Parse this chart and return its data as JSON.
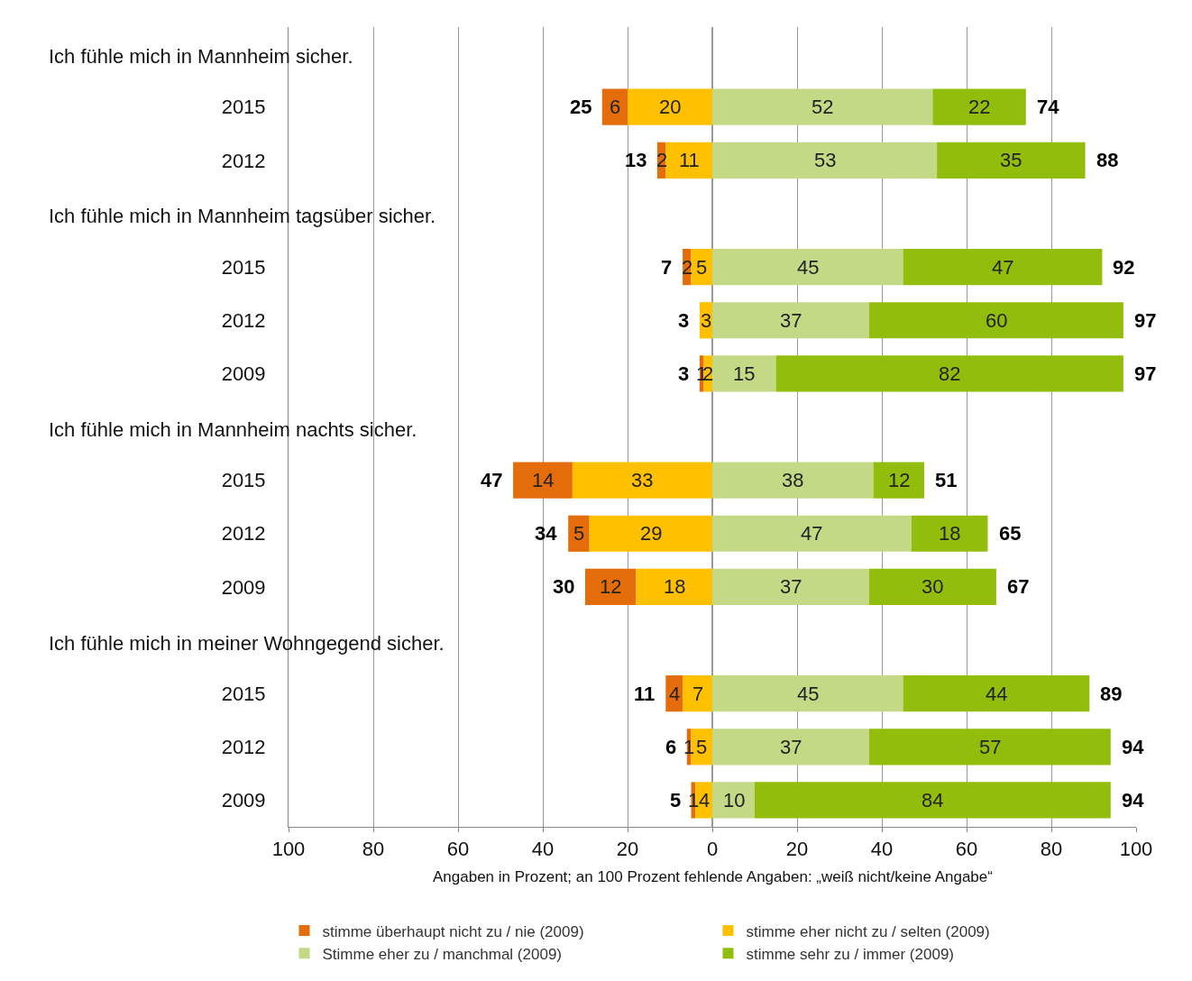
{
  "chart_data": {
    "type": "bar",
    "orientation": "horizontal",
    "categories": [
      null,
      "2015",
      "2012",
      null,
      "2015",
      "2012",
      "2009",
      null,
      "2015",
      "2012",
      "2009",
      null,
      "2015",
      "2012",
      "2009"
    ],
    "series": [
      {
        "name": "stimme überhaupt nicht zu / nie (2009)",
        "color": "#e46c0a",
        "values": [
          null,
          6,
          2,
          null,
          2,
          null,
          1,
          null,
          14,
          5,
          12,
          null,
          4,
          1,
          1
        ],
        "base": [
          null,
          -26,
          -13,
          null,
          -7,
          null,
          -3,
          null,
          -47,
          -34,
          -30,
          null,
          -11,
          -6,
          -5
        ]
      },
      {
        "name": "stimme eher nicht zu / selten (2009)",
        "color": "#ffc000",
        "values": [
          null,
          20,
          11,
          null,
          5,
          3,
          2,
          null,
          33,
          29,
          18,
          null,
          7,
          5,
          4
        ],
        "base": [
          null,
          -20,
          -11,
          null,
          -5,
          -3,
          -2,
          null,
          -33,
          -29,
          -18,
          null,
          -7,
          -5,
          -4
        ]
      },
      {
        "name": "Stimme eher zu / manchmal (2009)",
        "color": "#c4d985",
        "values": [
          null,
          52,
          53,
          null,
          45,
          37,
          15,
          null,
          38,
          47,
          37,
          null,
          45,
          37,
          10
        ],
        "base": [
          null,
          0,
          0,
          null,
          0,
          0,
          0,
          null,
          0,
          0,
          0,
          null,
          0,
          0,
          0
        ]
      },
      {
        "name": "stimme sehr zu / immer (2009)",
        "color": "#92bd0c",
        "values": [
          null,
          22,
          35,
          null,
          47,
          60,
          82,
          null,
          12,
          18,
          30,
          null,
          44,
          57,
          84
        ],
        "base": [
          null,
          52,
          53,
          null,
          45,
          37,
          15,
          null,
          38,
          47,
          37,
          null,
          45,
          37,
          10
        ]
      }
    ],
    "data_labels": true,
    "totals": [
      null,
      [
        "25",
        "74"
      ],
      [
        "13",
        "88"
      ],
      null,
      [
        "7",
        "92"
      ],
      [
        "3",
        "97"
      ],
      [
        "3",
        "97"
      ],
      null,
      [
        "47",
        "51"
      ],
      [
        "34",
        "65"
      ],
      [
        "30",
        "67"
      ],
      null,
      [
        "11",
        "89"
      ],
      [
        "6",
        "94"
      ],
      [
        "5",
        "94"
      ]
    ],
    "xlim": [
      -100,
      100
    ],
    "xticks": [
      {
        "value": -100,
        "label": "100"
      },
      {
        "value": -80,
        "label": "80"
      },
      {
        "value": -60,
        "label": "60"
      },
      {
        "value": -40,
        "label": "40"
      },
      {
        "value": -20,
        "label": "20"
      },
      0,
      20,
      40,
      60,
      80,
      100
    ],
    "grid": "x",
    "legend": "bottom",
    "annotations": [
      "Ich fühle mich in Mannheim sicher.",
      "Ich fühle mich in Mannheim tagsüber sicher.",
      "Ich fühle mich in Mannheim nachts sicher.",
      "Ich fühle mich in meiner Wohngegend sicher.",
      "Angaben in Prozent; an 100 Prozent fehlende Angaben: „weiß nicht/keine Angabe“"
    ]
  }
}
